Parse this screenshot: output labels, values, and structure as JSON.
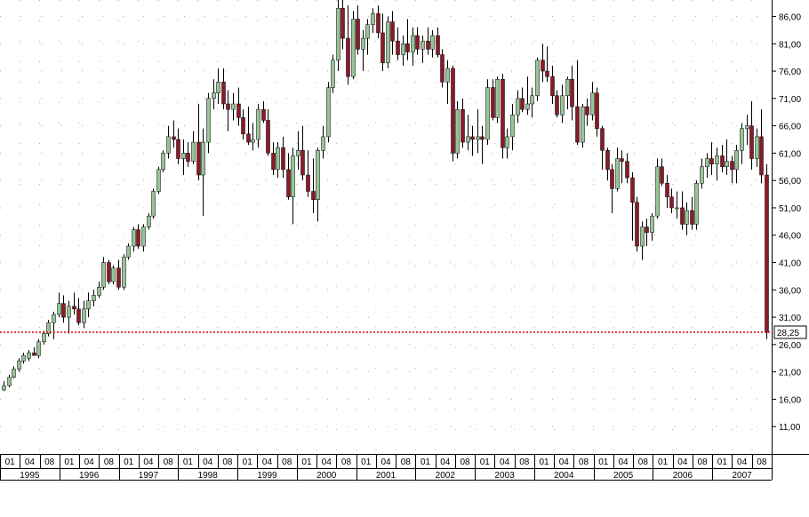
{
  "chart_data": {
    "type": "candlestick",
    "title": "",
    "xlabel": "",
    "ylabel": "",
    "ylim": [
      6,
      89
    ],
    "grid": "dotted",
    "y_axis_side": "right",
    "y_ticks": [
      {
        "value": 86,
        "label": "86,00"
      },
      {
        "value": 81,
        "label": "81,00"
      },
      {
        "value": 76,
        "label": "76,00"
      },
      {
        "value": 71,
        "label": "71,00"
      },
      {
        "value": 66,
        "label": "66,00"
      },
      {
        "value": 61,
        "label": "61,00"
      },
      {
        "value": 56,
        "label": "56,00"
      },
      {
        "value": 51,
        "label": "51,00"
      },
      {
        "value": 46,
        "label": "46,00"
      },
      {
        "value": 41,
        "label": "41,00"
      },
      {
        "value": 36,
        "label": "36,00"
      },
      {
        "value": 31,
        "label": "31,00"
      },
      {
        "value": 26,
        "label": "26,00"
      },
      {
        "value": 21,
        "label": "21,00"
      },
      {
        "value": 16,
        "label": "16,00"
      },
      {
        "value": 11,
        "label": "11,00"
      }
    ],
    "month_ticks": [
      "01",
      "04",
      "08",
      "01",
      "04",
      "08",
      "01",
      "04",
      "08",
      "01",
      "04",
      "08",
      "01",
      "04",
      "08",
      "01",
      "04",
      "08",
      "01",
      "04",
      "08",
      "01",
      "04",
      "08",
      "01",
      "04",
      "08",
      "01",
      "04",
      "08",
      "01",
      "04",
      "08",
      "01",
      "04",
      "08",
      "01",
      "04",
      "08"
    ],
    "year_labels": [
      "1995",
      "1996",
      "1997",
      "1998",
      "1999",
      "2000",
      "2001",
      "2002",
      "2003",
      "2004",
      "2005",
      "2006",
      "2007"
    ],
    "current_price": {
      "value": 28.25,
      "label": "28,25"
    },
    "colors": {
      "up": "#97c597",
      "down": "#8a1a2a",
      "wick": "#000000",
      "price_line": "#d90000",
      "grid": "#b0b0b0"
    },
    "candles": [
      [
        17.7,
        19.3,
        17.5,
        18.5
      ],
      [
        18.5,
        20.5,
        18.2,
        20.0
      ],
      [
        20.0,
        22.0,
        19.8,
        21.5
      ],
      [
        21.5,
        23.5,
        21.0,
        23.0
      ],
      [
        23.0,
        24.5,
        22.5,
        24.0
      ],
      [
        23.5,
        25.0,
        23.0,
        24.5
      ],
      [
        24.5,
        25.5,
        24.0,
        24.0
      ],
      [
        24.0,
        27.0,
        23.5,
        26.5
      ],
      [
        26.5,
        28.5,
        26.0,
        28.0
      ],
      [
        28.0,
        30.5,
        27.5,
        30.0
      ],
      [
        30.0,
        32.0,
        27.0,
        31.5
      ],
      [
        31.5,
        35.5,
        31.0,
        33.5
      ],
      [
        33.5,
        35.0,
        30.0,
        31.0
      ],
      [
        31.0,
        34.0,
        28.0,
        33.0
      ],
      [
        33.0,
        35.5,
        31.5,
        32.5
      ],
      [
        32.5,
        34.5,
        29.5,
        30.0
      ],
      [
        30.0,
        34.0,
        29.0,
        32.5
      ],
      [
        32.5,
        35.5,
        31.0,
        34.0
      ],
      [
        34.0,
        36.0,
        33.0,
        35.0
      ],
      [
        35.0,
        37.5,
        34.5,
        36.5
      ],
      [
        36.5,
        42.0,
        36.0,
        41.0
      ],
      [
        41.0,
        41.5,
        37.0,
        37.5
      ],
      [
        37.5,
        40.5,
        37.0,
        40.0
      ],
      [
        40.0,
        41.5,
        36.0,
        36.5
      ],
      [
        36.5,
        42.5,
        36.0,
        42.0
      ],
      [
        42.0,
        44.5,
        41.5,
        44.0
      ],
      [
        44.0,
        47.5,
        43.0,
        47.0
      ],
      [
        47.0,
        48.0,
        43.5,
        44.0
      ],
      [
        44.0,
        48.0,
        43.0,
        47.5
      ],
      [
        47.5,
        50.0,
        47.0,
        49.5
      ],
      [
        49.5,
        54.5,
        49.0,
        54.0
      ],
      [
        54.0,
        58.5,
        53.5,
        58.0
      ],
      [
        58.0,
        61.5,
        57.5,
        61.0
      ],
      [
        61.0,
        66.0,
        60.0,
        64.0
      ],
      [
        64.0,
        67.0,
        62.0,
        63.5
      ],
      [
        63.5,
        65.5,
        59.0,
        60.0
      ],
      [
        60.0,
        63.5,
        57.0,
        61.0
      ],
      [
        61.0,
        63.0,
        58.5,
        59.5
      ],
      [
        59.5,
        65.0,
        59.0,
        63.0
      ],
      [
        63.0,
        70.0,
        56.0,
        57.0
      ],
      [
        57.0,
        65.5,
        49.5,
        63.0
      ],
      [
        63.0,
        72.0,
        61.0,
        71.0
      ],
      [
        71.0,
        74.5,
        69.0,
        72.0
      ],
      [
        72.0,
        76.5,
        70.0,
        74.0
      ],
      [
        74.0,
        76.5,
        69.0,
        70.0
      ],
      [
        70.0,
        72.5,
        65.0,
        69.0
      ],
      [
        69.0,
        72.0,
        67.0,
        70.0
      ],
      [
        70.0,
        73.0,
        66.0,
        67.5
      ],
      [
        67.5,
        69.0,
        63.5,
        64.5
      ],
      [
        64.5,
        69.5,
        62.5,
        63.0
      ],
      [
        63.0,
        66.5,
        61.5,
        63.5
      ],
      [
        63.5,
        70.0,
        62.0,
        69.0
      ],
      [
        69.0,
        70.5,
        66.5,
        67.0
      ],
      [
        67.0,
        69.0,
        60.5,
        61.0
      ],
      [
        61.0,
        63.0,
        57.0,
        58.0
      ],
      [
        58.0,
        63.0,
        56.5,
        62.0
      ],
      [
        62.0,
        64.0,
        56.5,
        58.0
      ],
      [
        58.0,
        61.0,
        52.5,
        53.0
      ],
      [
        53.0,
        62.0,
        48.0,
        60.5
      ],
      [
        60.5,
        65.0,
        58.0,
        61.5
      ],
      [
        61.5,
        66.0,
        56.0,
        57.0
      ],
      [
        57.0,
        61.5,
        53.0,
        54.0
      ],
      [
        54.0,
        60.0,
        50.0,
        52.5
      ],
      [
        52.5,
        62.0,
        48.5,
        61.5
      ],
      [
        61.5,
        66.0,
        60.0,
        64.0
      ],
      [
        64.0,
        74.0,
        63.0,
        73.0
      ],
      [
        73.0,
        79.0,
        72.0,
        78.0
      ],
      [
        78.0,
        89.0,
        76.0,
        87.5
      ],
      [
        87.5,
        89.5,
        80.0,
        82.0
      ],
      [
        82.0,
        88.0,
        73.5,
        75.0
      ],
      [
        75.0,
        87.0,
        74.5,
        85.5
      ],
      [
        85.5,
        88.0,
        79.0,
        80.0
      ],
      [
        80.0,
        83.5,
        76.0,
        82.0
      ],
      [
        82.0,
        85.5,
        79.0,
        84.5
      ],
      [
        84.5,
        87.5,
        83.0,
        86.5
      ],
      [
        86.5,
        88.0,
        82.0,
        83.0
      ],
      [
        83.0,
        86.5,
        76.0,
        77.5
      ],
      [
        77.5,
        86.0,
        76.5,
        85.0
      ],
      [
        85.0,
        87.0,
        79.0,
        81.5
      ],
      [
        81.5,
        84.0,
        78.0,
        79.0
      ],
      [
        79.0,
        82.5,
        77.0,
        81.0
      ],
      [
        81.0,
        85.5,
        78.0,
        79.5
      ],
      [
        79.5,
        84.0,
        77.0,
        82.5
      ],
      [
        82.5,
        84.0,
        79.0,
        80.0
      ],
      [
        80.0,
        82.5,
        77.5,
        81.5
      ],
      [
        81.5,
        84.0,
        79.0,
        80.0
      ],
      [
        80.0,
        83.5,
        78.5,
        82.5
      ],
      [
        82.5,
        84.0,
        78.5,
        79.0
      ],
      [
        79.0,
        80.0,
        73.0,
        74.0
      ],
      [
        74.0,
        78.0,
        70.0,
        76.5
      ],
      [
        76.5,
        77.0,
        59.5,
        61.0
      ],
      [
        61.0,
        70.5,
        60.0,
        69.0
      ],
      [
        69.0,
        71.0,
        62.0,
        63.0
      ],
      [
        63.0,
        68.0,
        61.5,
        64.0
      ],
      [
        64.0,
        66.0,
        60.5,
        63.5
      ],
      [
        63.5,
        69.0,
        61.0,
        64.0
      ],
      [
        64.0,
        66.0,
        59.0,
        63.5
      ],
      [
        63.5,
        74.5,
        62.5,
        73.0
      ],
      [
        73.0,
        74.5,
        67.0,
        67.5
      ],
      [
        67.5,
        75.0,
        66.5,
        74.5
      ],
      [
        74.5,
        75.5,
        60.0,
        62.0
      ],
      [
        62.0,
        65.5,
        60.0,
        64.0
      ],
      [
        64.0,
        70.0,
        61.5,
        68.0
      ],
      [
        68.0,
        72.5,
        66.5,
        71.0
      ],
      [
        71.0,
        73.0,
        68.5,
        69.0
      ],
      [
        69.0,
        75.0,
        68.0,
        70.0
      ],
      [
        70.0,
        73.0,
        67.5,
        71.5
      ],
      [
        71.5,
        78.5,
        70.5,
        78.0
      ],
      [
        78.0,
        81.0,
        74.0,
        76.0
      ],
      [
        76.0,
        80.5,
        74.0,
        75.0
      ],
      [
        75.0,
        77.0,
        70.0,
        71.5
      ],
      [
        71.5,
        72.5,
        67.5,
        68.0
      ],
      [
        68.0,
        73.5,
        66.5,
        71.5
      ],
      [
        71.5,
        75.0,
        69.0,
        74.5
      ],
      [
        74.5,
        77.0,
        67.0,
        69.5
      ],
      [
        69.5,
        78.0,
        62.5,
        63.0
      ],
      [
        63.0,
        70.0,
        62.0,
        69.5
      ],
      [
        69.5,
        71.0,
        66.0,
        68.0
      ],
      [
        68.0,
        74.0,
        67.0,
        72.0
      ],
      [
        72.0,
        73.0,
        64.0,
        65.5
      ],
      [
        65.5,
        66.0,
        58.0,
        61.5
      ],
      [
        61.5,
        62.0,
        56.0,
        58.0
      ],
      [
        58.0,
        59.0,
        50.0,
        54.5
      ],
      [
        54.5,
        62.0,
        54.0,
        60.0
      ],
      [
        60.0,
        61.5,
        55.5,
        59.5
      ],
      [
        59.5,
        61.0,
        55.5,
        56.5
      ],
      [
        56.5,
        57.5,
        45.0,
        52.0
      ],
      [
        52.0,
        53.0,
        43.0,
        44.0
      ],
      [
        44.0,
        48.5,
        41.5,
        47.5
      ],
      [
        47.5,
        49.0,
        44.0,
        46.5
      ],
      [
        46.5,
        50.0,
        45.0,
        49.5
      ],
      [
        49.5,
        60.0,
        49.0,
        58.5
      ],
      [
        58.5,
        60.0,
        55.0,
        55.5
      ],
      [
        55.5,
        57.0,
        51.0,
        53.0
      ],
      [
        53.0,
        54.5,
        50.0,
        51.0
      ],
      [
        51.0,
        54.0,
        49.0,
        51.0
      ],
      [
        51.0,
        54.0,
        47.0,
        48.0
      ],
      [
        48.0,
        52.0,
        46.0,
        50.5
      ],
      [
        50.5,
        53.0,
        47.0,
        48.0
      ],
      [
        48.0,
        56.0,
        47.0,
        55.5
      ],
      [
        55.5,
        60.0,
        54.5,
        58.5
      ],
      [
        58.5,
        61.0,
        56.5,
        60.0
      ],
      [
        60.0,
        63.0,
        57.0,
        59.0
      ],
      [
        59.0,
        62.0,
        56.0,
        60.5
      ],
      [
        60.5,
        62.5,
        57.5,
        58.5
      ],
      [
        58.5,
        63.5,
        57.0,
        59.5
      ],
      [
        59.5,
        60.5,
        55.5,
        58.0
      ],
      [
        58.0,
        62.5,
        55.5,
        61.5
      ],
      [
        61.5,
        66.5,
        59.0,
        65.5
      ],
      [
        65.5,
        68.0,
        62.5,
        66.0
      ],
      [
        66.0,
        70.5,
        58.0,
        60.0
      ],
      [
        60.0,
        65.5,
        58.5,
        64.0
      ],
      [
        64.0,
        69.0,
        55.5,
        57.0
      ],
      [
        57.0,
        59.0,
        27.0,
        28.25
      ]
    ]
  }
}
